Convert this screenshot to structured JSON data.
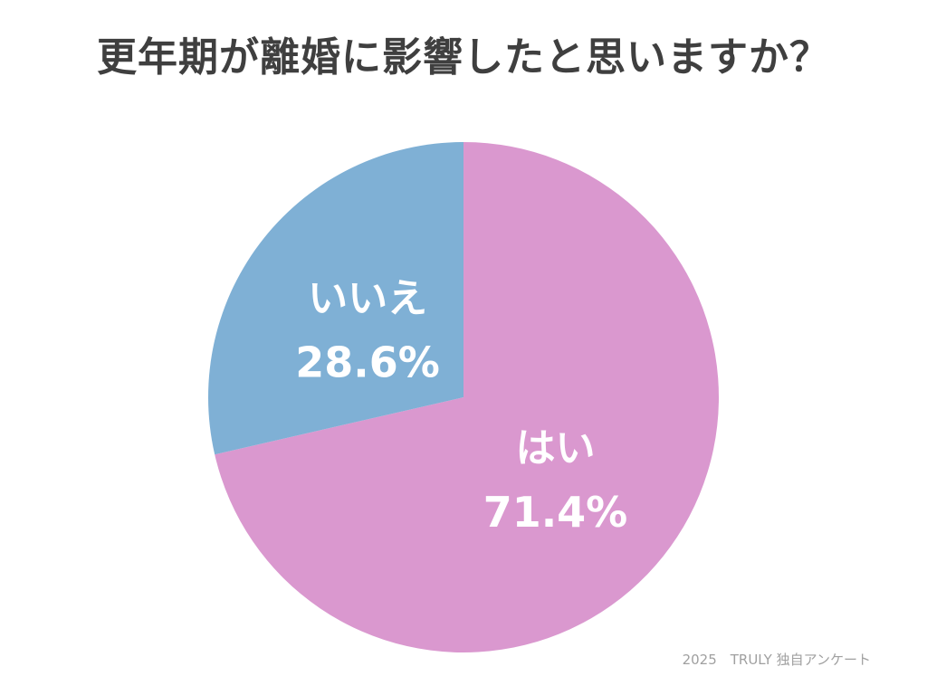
{
  "chart_data": {
    "type": "pie",
    "title": "更年期が離婚に影響したと思いますか？",
    "start": "top",
    "direction": "clockwise",
    "slices": [
      {
        "label": "はい",
        "value": 71.4,
        "value_label": "71.4%",
        "color": "#da98cf"
      },
      {
        "label": "いいえ",
        "value": 28.6,
        "value_label": "28.6%",
        "color": "#7fb0d5"
      }
    ]
  },
  "source": "2025　TRULY 独自アンケート"
}
